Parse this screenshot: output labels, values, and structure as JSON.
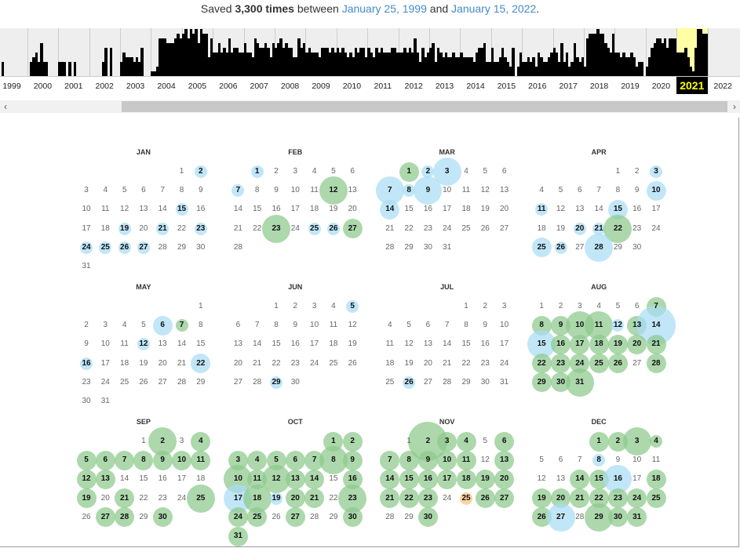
{
  "summary": {
    "prefix": "Saved ",
    "count": "3,300 times",
    "between": " between ",
    "first_date": "January 25, 1999",
    "and": " and ",
    "last_date": "January 15, 2022",
    "end": "."
  },
  "colors": {
    "blue": "#a9dcf5",
    "green": "#8cc98c",
    "orange": "#fbc57e",
    "selected_year_text": "#ffff00",
    "highlight": "#ffffa5"
  },
  "timeline": {
    "selected_year": "2021",
    "years": [
      "1999",
      "2000",
      "2001",
      "2002",
      "2003",
      "2004",
      "2005",
      "2006",
      "2007",
      "2008",
      "2009",
      "2010",
      "2011",
      "2012",
      "2013",
      "2014",
      "2015",
      "2016",
      "2017",
      "2018",
      "2019",
      "2020",
      "2021",
      "2022"
    ],
    "monthly_activity": [
      [
        3,
        0,
        3,
        0,
        0,
        0,
        0,
        0,
        0,
        0,
        0,
        0
      ],
      [
        0,
        3,
        4,
        5,
        3,
        7,
        3,
        3,
        0,
        0,
        0,
        0
      ],
      [
        3,
        3,
        3,
        0,
        3,
        0,
        3,
        0,
        0,
        0,
        0,
        0
      ],
      [
        0,
        0,
        0,
        0,
        0,
        3,
        6,
        0,
        6,
        0,
        0,
        0
      ],
      [
        3,
        5,
        4,
        4,
        4,
        3,
        4,
        3,
        6,
        0,
        0,
        0
      ],
      [
        1,
        1,
        2,
        8,
        8,
        8,
        7,
        7,
        7,
        8,
        9,
        8
      ],
      [
        9,
        10,
        8,
        10,
        9,
        10,
        7,
        10,
        9,
        9,
        4,
        8
      ],
      [
        5,
        5,
        7,
        5,
        6,
        5,
        8,
        5,
        6,
        6,
        5,
        5
      ],
      [
        7,
        5,
        5,
        4,
        8,
        7,
        6,
        6,
        7,
        6,
        4,
        7
      ],
      [
        6,
        7,
        8,
        6,
        7,
        6,
        6,
        4,
        4,
        8,
        6,
        7
      ],
      [
        5,
        6,
        5,
        5,
        5,
        4,
        6,
        6,
        6,
        5,
        6,
        5
      ],
      [
        6,
        5,
        6,
        5,
        4,
        5,
        4,
        6,
        5,
        6,
        6,
        4
      ],
      [
        6,
        5,
        4,
        6,
        5,
        6,
        5,
        5,
        5,
        6,
        6,
        5
      ],
      [
        5,
        5,
        6,
        5,
        6,
        5,
        8,
        5,
        3,
        6,
        4,
        5
      ],
      [
        6,
        7,
        3,
        6,
        5,
        4,
        5,
        4,
        4,
        5,
        4,
        4
      ],
      [
        5,
        4,
        4,
        4,
        4,
        3,
        5,
        6,
        6,
        7,
        3,
        3
      ],
      [
        6,
        3,
        3,
        4,
        6,
        4,
        3,
        2,
        6,
        0,
        2,
        5
      ],
      [
        3,
        3,
        4,
        3,
        4,
        2,
        5,
        4,
        3,
        3,
        4,
        5
      ],
      [
        6,
        5,
        3,
        7,
        3,
        5,
        2,
        3,
        7,
        4,
        3,
        4
      ],
      [
        2,
        8,
        9,
        9,
        9,
        10,
        9,
        9,
        7,
        6,
        5,
        9
      ],
      [
        5,
        5,
        4,
        5,
        4,
        4,
        5,
        4,
        2,
        3,
        3,
        0
      ],
      [
        2,
        4,
        6,
        7,
        8,
        8,
        7,
        8,
        6,
        8,
        8,
        8
      ],
      [
        5,
        5,
        5,
        6,
        4,
        2,
        1,
        6,
        10,
        10,
        9,
        9
      ],
      [
        0,
        0,
        0,
        0,
        0,
        0,
        0,
        0,
        0,
        0,
        0,
        0
      ]
    ]
  },
  "scroll": {
    "left_icon": "chevron-left-icon",
    "right_icon": "chevron-right-icon"
  },
  "calendar": {
    "year": 2021,
    "months": [
      {
        "name": "JAN",
        "captures": [
          [
            2,
            "b",
            1
          ],
          [
            15,
            "b",
            1
          ],
          [
            19,
            "b",
            1
          ],
          [
            21,
            "b",
            1
          ],
          [
            23,
            "b",
            1
          ],
          [
            24,
            "b",
            1
          ],
          [
            25,
            "b",
            1
          ],
          [
            26,
            "b",
            1
          ],
          [
            27,
            "b",
            1
          ]
        ]
      },
      {
        "name": "FEB",
        "captures": [
          [
            1,
            "b",
            1
          ],
          [
            7,
            "b",
            1
          ],
          [
            12,
            "g",
            4
          ],
          [
            23,
            "g",
            4
          ],
          [
            25,
            "b",
            1
          ],
          [
            26,
            "b",
            1
          ],
          [
            27,
            "g",
            3
          ]
        ]
      },
      {
        "name": "MAR",
        "captures": [
          [
            1,
            "g",
            3
          ],
          [
            2,
            "b",
            1
          ],
          [
            3,
            "b",
            4
          ],
          [
            7,
            "b",
            4
          ],
          [
            8,
            "b",
            1
          ],
          [
            9,
            "b",
            4
          ],
          [
            14,
            "b",
            3
          ]
        ]
      },
      {
        "name": "APR",
        "captures": [
          [
            3,
            "b",
            1
          ],
          [
            10,
            "b",
            3
          ],
          [
            11,
            "b",
            1
          ],
          [
            15,
            "b",
            3
          ],
          [
            20,
            "b",
            1
          ],
          [
            21,
            "b",
            1
          ],
          [
            22,
            "g",
            4
          ],
          [
            25,
            "b",
            3
          ],
          [
            26,
            "b",
            1
          ],
          [
            28,
            "b",
            4
          ]
        ]
      },
      {
        "name": "MAY",
        "captures": [
          [
            6,
            "b",
            3
          ],
          [
            7,
            "g",
            1
          ],
          [
            12,
            "b",
            1
          ],
          [
            16,
            "b",
            1
          ],
          [
            22,
            "b",
            3
          ]
        ]
      },
      {
        "name": "JUN",
        "captures": [
          [
            5,
            "b",
            1
          ],
          [
            29,
            "b",
            1
          ]
        ]
      },
      {
        "name": "JUL",
        "captures": [
          [
            26,
            "b",
            1
          ]
        ]
      },
      {
        "name": "AUG",
        "captures": [
          [
            7,
            "g",
            3
          ],
          [
            8,
            "g",
            3
          ],
          [
            9,
            "g",
            3
          ],
          [
            10,
            "g",
            4
          ],
          [
            11,
            "g",
            4
          ],
          [
            12,
            "b",
            1
          ],
          [
            13,
            "g",
            3
          ],
          [
            14,
            "b",
            5
          ],
          [
            15,
            "b",
            4
          ],
          [
            16,
            "g",
            3
          ],
          [
            17,
            "g",
            3
          ],
          [
            18,
            "g",
            3
          ],
          [
            19,
            "g",
            3
          ],
          [
            20,
            "g",
            3
          ],
          [
            21,
            "g",
            3
          ],
          [
            22,
            "g",
            3
          ],
          [
            23,
            "g",
            3
          ],
          [
            24,
            "g",
            3
          ],
          [
            25,
            "g",
            3
          ],
          [
            26,
            "g",
            3
          ],
          [
            28,
            "g",
            3
          ],
          [
            29,
            "g",
            3
          ],
          [
            30,
            "g",
            3
          ],
          [
            31,
            "g",
            4
          ]
        ]
      },
      {
        "name": "SEP",
        "captures": [
          [
            2,
            "g",
            4
          ],
          [
            4,
            "g",
            3
          ],
          [
            5,
            "g",
            3
          ],
          [
            6,
            "g",
            3
          ],
          [
            7,
            "g",
            3
          ],
          [
            8,
            "g",
            3
          ],
          [
            9,
            "g",
            3
          ],
          [
            10,
            "g",
            3
          ],
          [
            11,
            "g",
            3
          ],
          [
            12,
            "g",
            3
          ],
          [
            13,
            "g",
            3
          ],
          [
            19,
            "g",
            3
          ],
          [
            21,
            "g",
            3
          ],
          [
            25,
            "g",
            4
          ],
          [
            27,
            "g",
            3
          ],
          [
            28,
            "g",
            3
          ],
          [
            30,
            "g",
            3
          ]
        ]
      },
      {
        "name": "OCT",
        "captures": [
          [
            1,
            "g",
            3
          ],
          [
            2,
            "g",
            3
          ],
          [
            3,
            "g",
            3
          ],
          [
            4,
            "g",
            3
          ],
          [
            5,
            "g",
            3
          ],
          [
            6,
            "g",
            3
          ],
          [
            7,
            "g",
            3
          ],
          [
            8,
            "g",
            4
          ],
          [
            9,
            "g",
            3
          ],
          [
            10,
            "g",
            4
          ],
          [
            11,
            "g",
            3
          ],
          [
            12,
            "g",
            4
          ],
          [
            13,
            "g",
            3
          ],
          [
            14,
            "g",
            3
          ],
          [
            16,
            "g",
            3
          ],
          [
            17,
            "b",
            4
          ],
          [
            18,
            "g",
            4
          ],
          [
            19,
            "b",
            1
          ],
          [
            20,
            "g",
            3
          ],
          [
            21,
            "g",
            3
          ],
          [
            23,
            "g",
            4
          ],
          [
            24,
            "g",
            3
          ],
          [
            25,
            "g",
            3
          ],
          [
            27,
            "g",
            3
          ],
          [
            30,
            "g",
            3
          ],
          [
            31,
            "g",
            3
          ]
        ]
      },
      {
        "name": "NOV",
        "captures": [
          [
            2,
            "g",
            5
          ],
          [
            3,
            "g",
            3
          ],
          [
            4,
            "g",
            3
          ],
          [
            6,
            "g",
            3
          ],
          [
            7,
            "g",
            3
          ],
          [
            8,
            "g",
            3
          ],
          [
            9,
            "g",
            3
          ],
          [
            10,
            "g",
            3
          ],
          [
            11,
            "g",
            3
          ],
          [
            13,
            "g",
            3
          ],
          [
            14,
            "g",
            3
          ],
          [
            15,
            "g",
            3
          ],
          [
            16,
            "g",
            3
          ],
          [
            17,
            "g",
            3
          ],
          [
            18,
            "g",
            3
          ],
          [
            19,
            "g",
            3
          ],
          [
            20,
            "g",
            3
          ],
          [
            21,
            "g",
            3
          ],
          [
            22,
            "g",
            3
          ],
          [
            23,
            "g",
            3
          ],
          [
            25,
            "o",
            1
          ],
          [
            26,
            "g",
            3
          ],
          [
            27,
            "g",
            3
          ],
          [
            30,
            "g",
            3
          ]
        ]
      },
      {
        "name": "DEC",
        "captures": [
          [
            1,
            "g",
            3
          ],
          [
            2,
            "g",
            3
          ],
          [
            3,
            "g",
            4
          ],
          [
            4,
            "g",
            1
          ],
          [
            8,
            "b",
            1
          ],
          [
            14,
            "g",
            3
          ],
          [
            15,
            "g",
            3
          ],
          [
            16,
            "b",
            4
          ],
          [
            18,
            "g",
            3
          ],
          [
            19,
            "g",
            3
          ],
          [
            20,
            "g",
            3
          ],
          [
            21,
            "g",
            3
          ],
          [
            22,
            "g",
            3
          ],
          [
            23,
            "g",
            3
          ],
          [
            24,
            "g",
            3
          ],
          [
            25,
            "g",
            3
          ],
          [
            26,
            "g",
            3
          ],
          [
            27,
            "b",
            4
          ],
          [
            29,
            "g",
            4
          ],
          [
            30,
            "g",
            3
          ],
          [
            31,
            "g",
            3
          ]
        ]
      }
    ]
  }
}
